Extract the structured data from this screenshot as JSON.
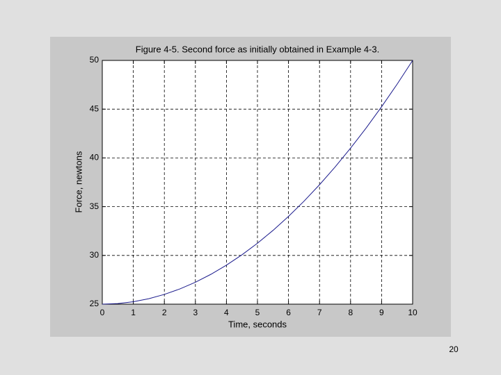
{
  "chart_data": {
    "type": "line",
    "title": "Figure 4-5. Second force as initially obtained in Example 4-3.",
    "x_label": "Time, seconds",
    "y_label": "Force, newtons",
    "x": [
      0,
      0.5,
      1,
      1.5,
      2,
      2.5,
      3,
      3.5,
      4,
      4.5,
      5,
      5.5,
      6,
      6.5,
      7,
      7.5,
      8,
      8.5,
      9,
      9.5,
      10
    ],
    "series": [
      {
        "color": "#1a1a8c",
        "values": [
          25,
          25.0625,
          25.25,
          25.5625,
          26,
          26.5625,
          27.25,
          28.0625,
          29,
          30.0625,
          31.25,
          32.5625,
          34,
          35.5625,
          37.25,
          39.0625,
          41,
          43.0625,
          45.25,
          47.5625,
          50
        ]
      }
    ],
    "xlim": [
      0,
      10
    ],
    "ylim": [
      25,
      50
    ],
    "xticks": [
      0,
      1,
      2,
      3,
      4,
      5,
      6,
      7,
      8,
      9,
      10
    ],
    "yticks": [
      25,
      30,
      35,
      40,
      45,
      50
    ],
    "grid": true
  },
  "page_number": "20"
}
